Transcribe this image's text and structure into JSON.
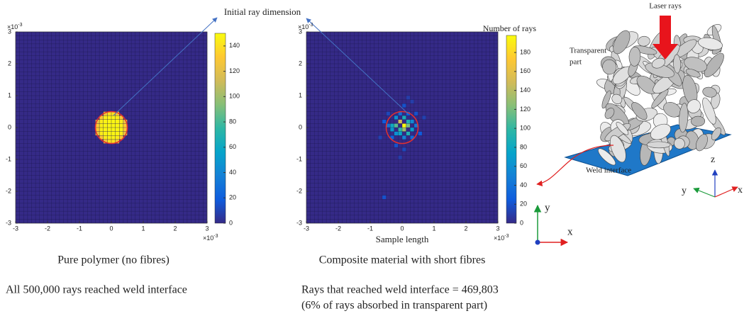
{
  "chart_data": [
    {
      "type": "heatmap",
      "colormap": "parula",
      "cell_size": 0.125,
      "xlim": [
        -3,
        3
      ],
      "ylim": [
        -3,
        3
      ],
      "xticks": [
        -3,
        -2,
        -1,
        0,
        1,
        2,
        3
      ],
      "yticks": [
        -3,
        -2,
        -1,
        0,
        1,
        2,
        3
      ],
      "axis_multiplier": "×10",
      "axis_multiplier_exp": "-3",
      "clim": [
        0,
        150
      ],
      "cticks": [
        0,
        20,
        40,
        60,
        80,
        100,
        120,
        140
      ],
      "x": [
        -0.1875,
        -0.0625,
        0.0625,
        0.1875,
        -0.3125,
        -0.1875,
        -0.0625,
        0.0625,
        0.1875,
        0.3125,
        -0.4375,
        -0.3125,
        -0.1875,
        -0.0625,
        0.0625,
        0.1875,
        0.3125,
        0.4375,
        -0.4375,
        -0.3125,
        -0.1875,
        -0.0625,
        0.0625,
        0.1875,
        0.3125,
        0.4375,
        -0.4375,
        -0.3125,
        -0.1875,
        -0.0625,
        0.0625,
        0.1875,
        0.3125,
        0.4375,
        -0.4375,
        -0.3125,
        -0.1875,
        -0.0625,
        0.0625,
        0.1875,
        0.3125,
        0.4375,
        -0.3125,
        -0.1875,
        -0.0625,
        0.0625,
        0.1875,
        0.3125,
        -0.1875,
        -0.0625,
        0.0625,
        0.1875
      ],
      "y": [
        0.4375,
        0.4375,
        0.4375,
        0.4375,
        0.3125,
        0.3125,
        0.3125,
        0.3125,
        0.3125,
        0.3125,
        0.1875,
        0.1875,
        0.1875,
        0.1875,
        0.1875,
        0.1875,
        0.1875,
        0.1875,
        0.0625,
        0.0625,
        0.0625,
        0.0625,
        0.0625,
        0.0625,
        0.0625,
        0.0625,
        -0.0625,
        -0.0625,
        -0.0625,
        -0.0625,
        -0.0625,
        -0.0625,
        -0.0625,
        -0.0625,
        -0.1875,
        -0.1875,
        -0.1875,
        -0.1875,
        -0.1875,
        -0.1875,
        -0.1875,
        -0.1875,
        -0.3125,
        -0.3125,
        -0.3125,
        -0.3125,
        -0.3125,
        -0.3125,
        -0.4375,
        -0.4375,
        -0.4375,
        -0.4375
      ],
      "values": [
        128,
        140,
        140,
        128,
        130,
        145,
        147,
        147,
        145,
        130,
        125,
        144,
        147,
        148,
        148,
        147,
        144,
        125,
        132,
        146,
        148,
        148,
        148,
        148,
        146,
        132,
        132,
        146,
        148,
        148,
        148,
        148,
        146,
        132,
        125,
        144,
        147,
        148,
        148,
        147,
        144,
        125,
        130,
        145,
        147,
        147,
        145,
        130,
        128,
        140,
        140,
        128
      ],
      "caption": "Pure polymer (no fibres)",
      "note": "All 500,000 rays reached weld interface"
    },
    {
      "type": "heatmap",
      "colormap": "parula",
      "cell_size": 0.125,
      "xlim": [
        -3,
        3
      ],
      "ylim": [
        -3,
        3
      ],
      "xticks": [
        -3,
        -2,
        -1,
        0,
        1,
        2,
        3
      ],
      "yticks": [
        -3,
        -2,
        -1,
        0,
        1,
        2,
        3
      ],
      "axis_multiplier": "×10",
      "axis_multiplier_exp": "-3",
      "xlabel": "Sample length",
      "colorbar_label": "Number of rays",
      "clim": [
        0,
        198
      ],
      "cticks": [
        0,
        20,
        40,
        60,
        80,
        100,
        120,
        140,
        160,
        180
      ],
      "x": [
        0.0625,
        -0.0625,
        0.1875,
        -0.1875,
        0.0625,
        -0.0625,
        0.1875,
        -0.3125,
        0.3125,
        0.0625,
        -0.0625,
        0.1875,
        -0.1875,
        -0.3125,
        0.3125,
        -0.1875,
        0.0625,
        -0.4375,
        0.4375,
        -0.0625,
        0.1875,
        -0.3125,
        0.3125,
        0.5625,
        -0.5625,
        0.0625,
        -0.1875,
        0.4375,
        -0.4375,
        0.0625,
        0.6875,
        -0.6875,
        0.3125,
        -0.5625,
        0.1875,
        -0.0625
      ],
      "y": [
        0.0625,
        0.1875,
        0.0625,
        0.0625,
        -0.0625,
        -0.0625,
        0.1875,
        0.0625,
        -0.0625,
        0.3125,
        -0.1875,
        -0.1875,
        -0.1875,
        -0.0625,
        0.1875,
        0.3125,
        -0.3125,
        0.0625,
        0.0625,
        0.4375,
        0.4375,
        -0.3125,
        -0.3125,
        -0.1875,
        0.1875,
        0.6875,
        -0.5625,
        0.4375,
        0.4375,
        -0.6875,
        0.3125,
        -0.3125,
        0.8125,
        -2.1875,
        0.9375,
        -0.9375
      ],
      "values": [
        198,
        150,
        120,
        110,
        130,
        100,
        90,
        80,
        70,
        85,
        75,
        90,
        60,
        65,
        55,
        60,
        50,
        40,
        45,
        35,
        30,
        30,
        35,
        25,
        25,
        20,
        20,
        20,
        15,
        15,
        12,
        12,
        10,
        20,
        10,
        10
      ],
      "caption": "Composite material with short fibres",
      "note": "Rays that reached weld interface = 469,803",
      "note2": "(6% of rays absorbed in transparent part)"
    }
  ],
  "figure": {
    "annotation": "Initial ray dimension",
    "laser": "Laser rays",
    "transparent": [
      "Transparent",
      "part"
    ],
    "weld": "Weld interface",
    "axis_x": "x",
    "axis_y": "y",
    "axis_z": "z"
  }
}
